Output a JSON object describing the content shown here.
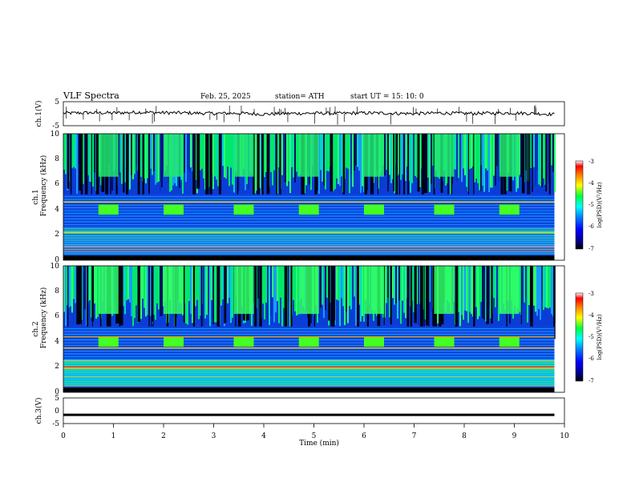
{
  "header": {
    "title": "VLF  Spectra",
    "date": "Feb. 25, 2025",
    "station": "station= ATH",
    "start_ut": "start  UT  =   15: 10: 0"
  },
  "chart_data": [
    {
      "type": "line",
      "panel": "ch1-waveform",
      "ylabel": "ch.1(V)",
      "ylim": [
        -5,
        5
      ],
      "yticks": [
        "5",
        "-5"
      ],
      "x": [
        0,
        0.5,
        1.0,
        1.5,
        2.0,
        2.5,
        3.0,
        3.5,
        4.0,
        4.5,
        5.0,
        5.5,
        6.0,
        6.5,
        7.0,
        7.5,
        8.0,
        8.5,
        9.0,
        9.5,
        9.8
      ],
      "y": [
        0.2,
        0.4,
        0.3,
        0.6,
        0.4,
        0.3,
        0.1,
        0.2,
        -0.2,
        0.1,
        0.2,
        0.1,
        0.3,
        0.2,
        0.0,
        0.3,
        0.1,
        0.2,
        0.3,
        0.0,
        -0.3
      ]
    },
    {
      "type": "heatmap",
      "panel": "ch1-spectrogram",
      "ylabel": "Frequency (kHz)",
      "channel_label": "ch.1",
      "ylim": [
        0,
        10
      ],
      "yticks": [
        "0",
        "2",
        "4",
        "6",
        "8",
        "10"
      ],
      "colorbar": {
        "label": "log(PSD)(V²/Hz)",
        "ticks": [
          "-3",
          "-4",
          "-5",
          "-6",
          "-7"
        ],
        "range": [
          -7,
          -3
        ]
      },
      "transmitter_blocks_min": [
        [
          0.7,
          1.1
        ],
        [
          2.0,
          2.4
        ],
        [
          3.4,
          3.8
        ],
        [
          4.7,
          5.1
        ],
        [
          6.0,
          6.4
        ],
        [
          7.4,
          7.8
        ],
        [
          8.7,
          9.1
        ]
      ],
      "transmitter_band_khz": [
        3.6,
        4.4
      ]
    },
    {
      "type": "heatmap",
      "panel": "ch2-spectrogram",
      "ylabel": "Frequency (kHz)",
      "channel_label": "ch.2",
      "ylim": [
        0,
        10
      ],
      "yticks": [
        "0",
        "2",
        "4",
        "6",
        "8",
        "10"
      ],
      "colorbar": {
        "label": "log(PSD)(V²/Hz)",
        "ticks": [
          "-3",
          "-4",
          "-5",
          "-6",
          "-7"
        ],
        "range": [
          -7,
          -3
        ]
      },
      "transmitter_blocks_min": [
        [
          0.7,
          1.1
        ],
        [
          2.0,
          2.4
        ],
        [
          3.4,
          3.8
        ],
        [
          4.7,
          5.1
        ],
        [
          6.0,
          6.4
        ],
        [
          7.4,
          7.8
        ],
        [
          8.7,
          9.1
        ]
      ],
      "transmitter_band_khz": [
        3.6,
        4.4
      ]
    },
    {
      "type": "line",
      "panel": "ch3-waveform",
      "ylabel": "ch.3(V)",
      "ylim": [
        -5,
        5
      ],
      "yticks": [
        "5",
        "0",
        "-5"
      ],
      "x": [
        0,
        9.8
      ],
      "y": [
        -1.6,
        -1.6
      ]
    }
  ],
  "x_axis": {
    "label": "Time  (min)",
    "range": [
      0,
      10
    ],
    "ticks": [
      "0",
      "1",
      "2",
      "3",
      "4",
      "5",
      "6",
      "7",
      "8",
      "9",
      "10"
    ]
  }
}
